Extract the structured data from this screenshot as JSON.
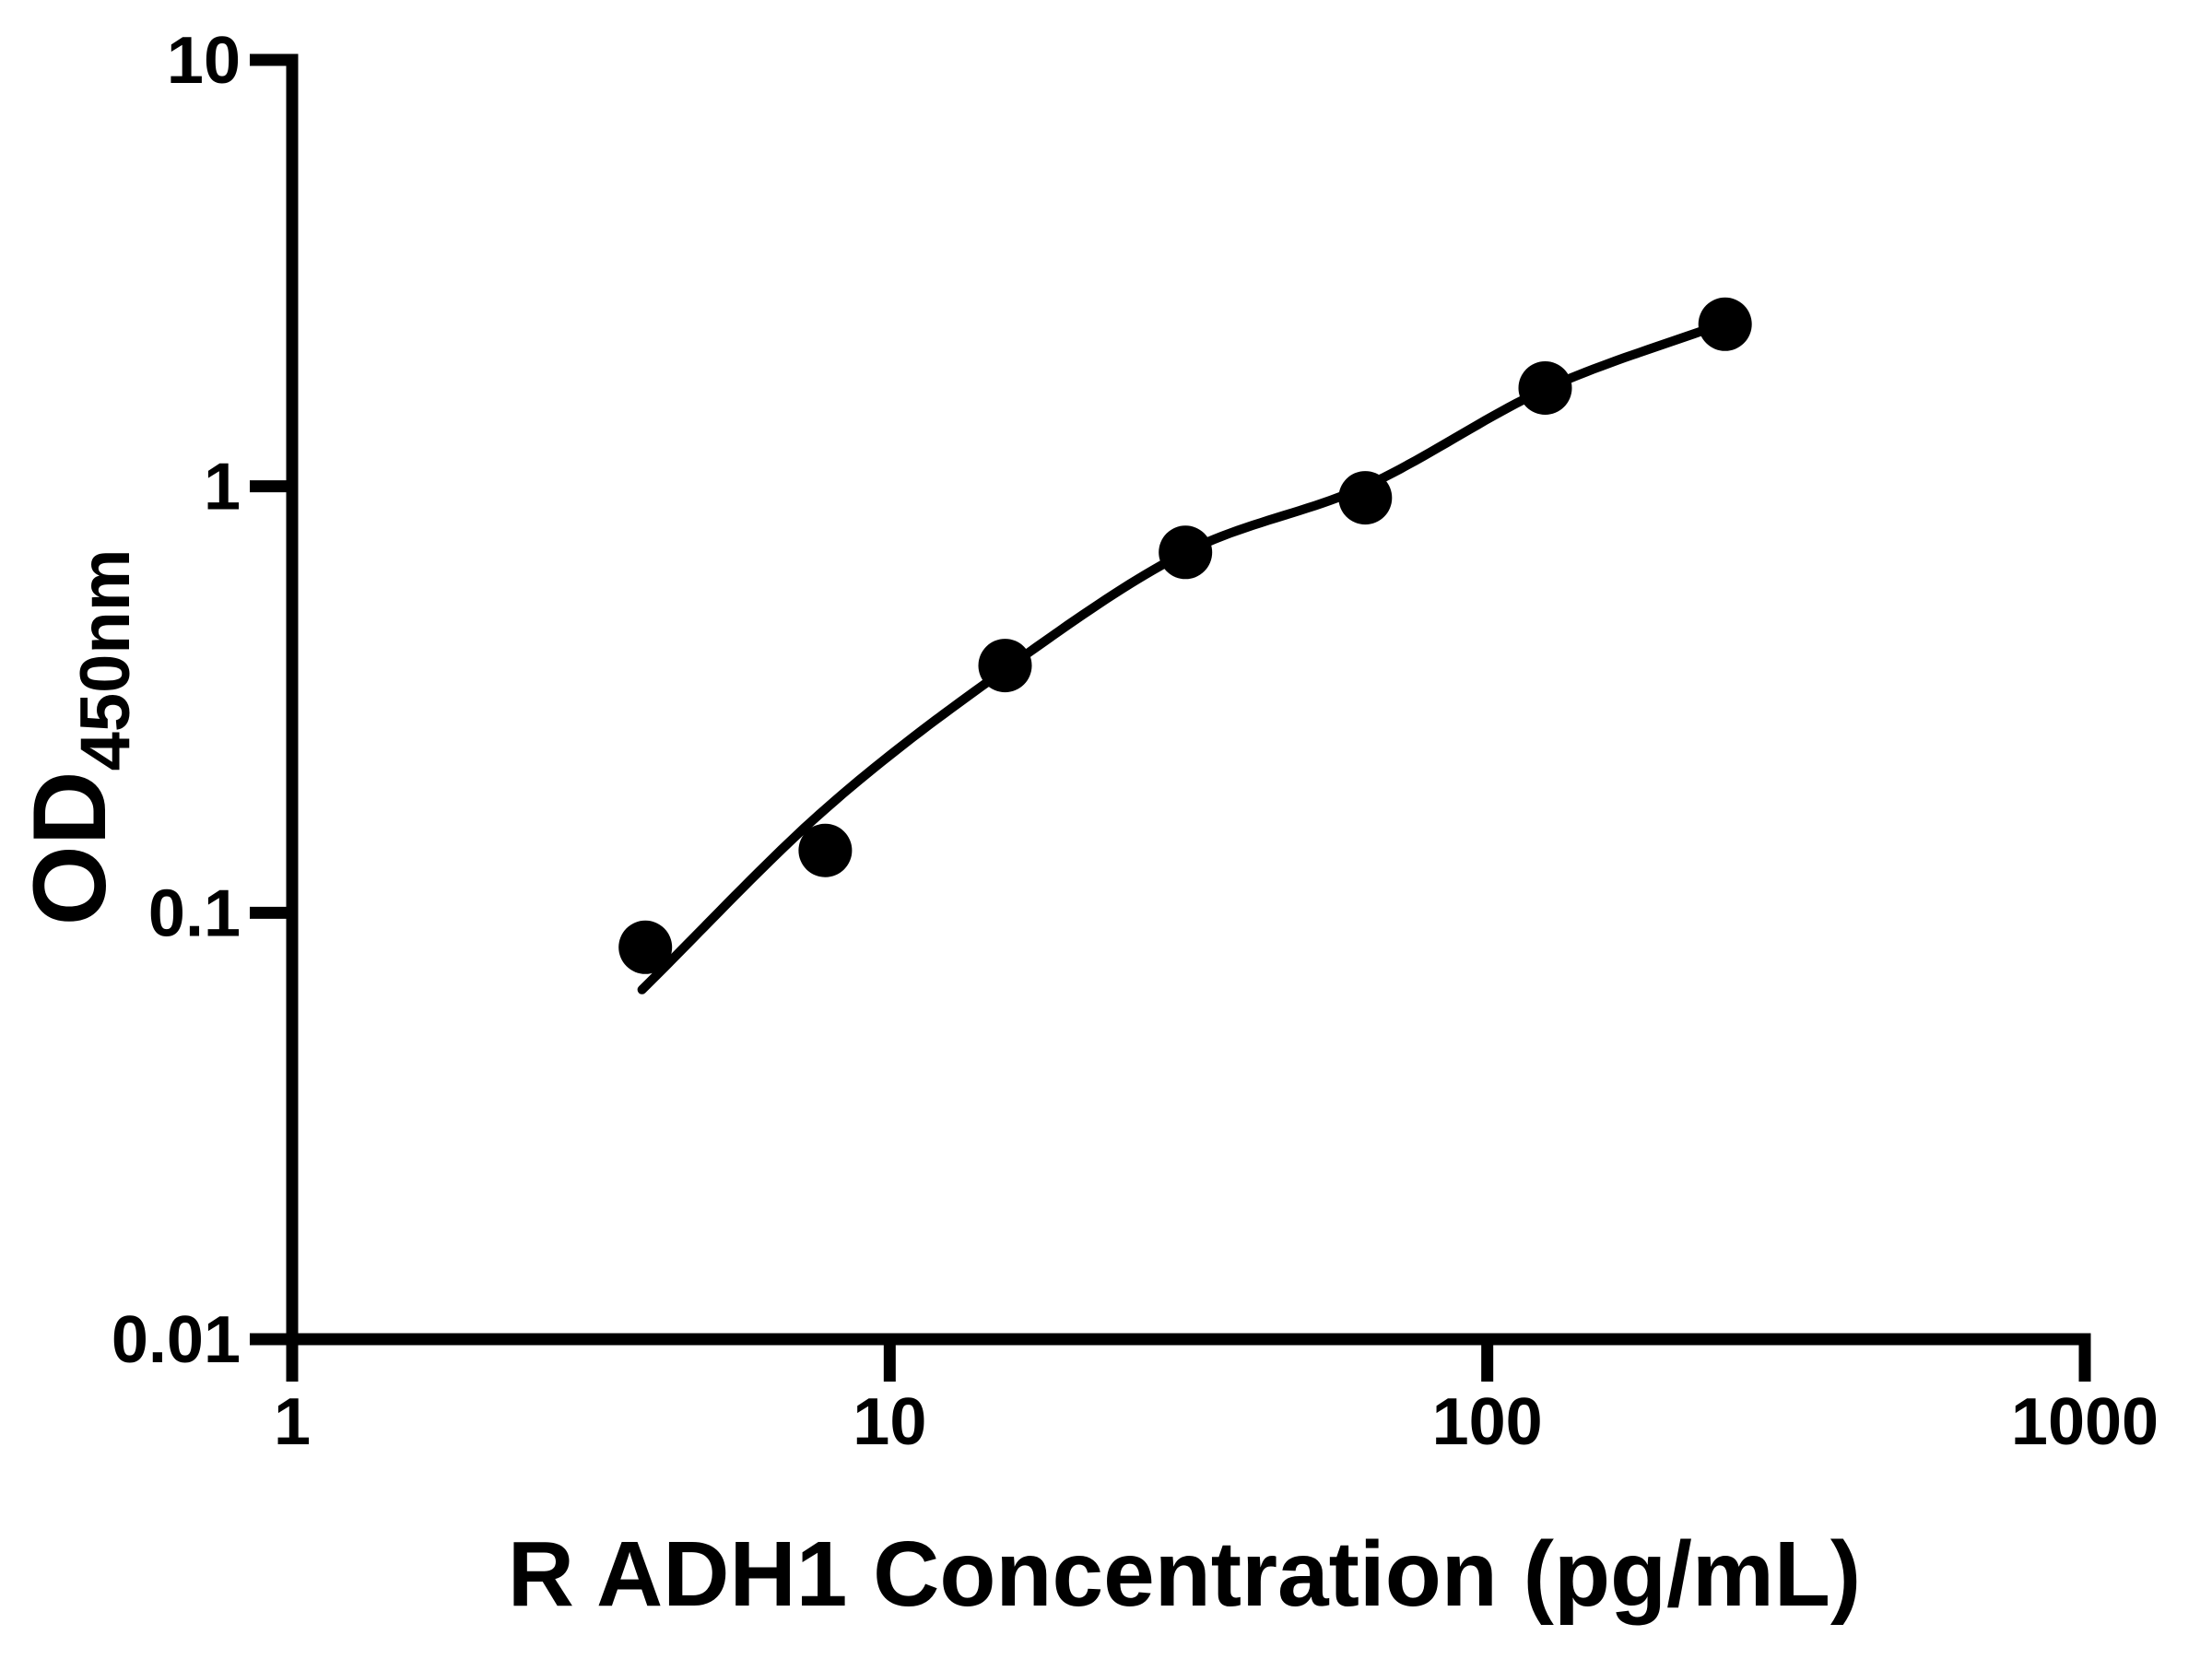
{
  "figure": {
    "background": "#ffffff",
    "foreground": "#000000"
  },
  "chart_data": {
    "type": "scatter",
    "xlabel": "R ADH1 Concentration (pg/mL)",
    "ylabel_main": "OD",
    "ylabel_sub": "450nm",
    "x_scale": "log",
    "y_scale": "log",
    "xlim": [
      1,
      1000
    ],
    "ylim": [
      0.01,
      10
    ],
    "grid": false,
    "legend": false,
    "x_ticks": [
      {
        "value": 1,
        "label": "1"
      },
      {
        "value": 10,
        "label": "10"
      },
      {
        "value": 100,
        "label": "100"
      },
      {
        "value": 1000,
        "label": "1000"
      }
    ],
    "y_ticks": [
      {
        "value": 0.01,
        "label": "0.01"
      },
      {
        "value": 0.1,
        "label": "0.1"
      },
      {
        "value": 1,
        "label": "1"
      },
      {
        "value": 10,
        "label": "10"
      }
    ],
    "series": [
      {
        "name": "standard-points",
        "type": "scatter",
        "marker": "circle",
        "color": "#000000",
        "points": [
          [
            3.9,
            0.083
          ],
          [
            7.8,
            0.14
          ],
          [
            15.6,
            0.38
          ],
          [
            31.25,
            0.7
          ],
          [
            62.5,
            0.94
          ],
          [
            125,
            1.7
          ],
          [
            250,
            2.4
          ]
        ]
      },
      {
        "name": "fitted-curve",
        "type": "line",
        "color": "#000000",
        "control_points": [
          [
            3.85,
            0.066
          ],
          [
            7.8,
            0.175
          ],
          [
            15.6,
            0.372
          ],
          [
            31.25,
            0.7
          ],
          [
            62.5,
            1.0
          ],
          [
            125,
            1.69
          ],
          [
            250,
            2.42
          ]
        ]
      }
    ]
  }
}
